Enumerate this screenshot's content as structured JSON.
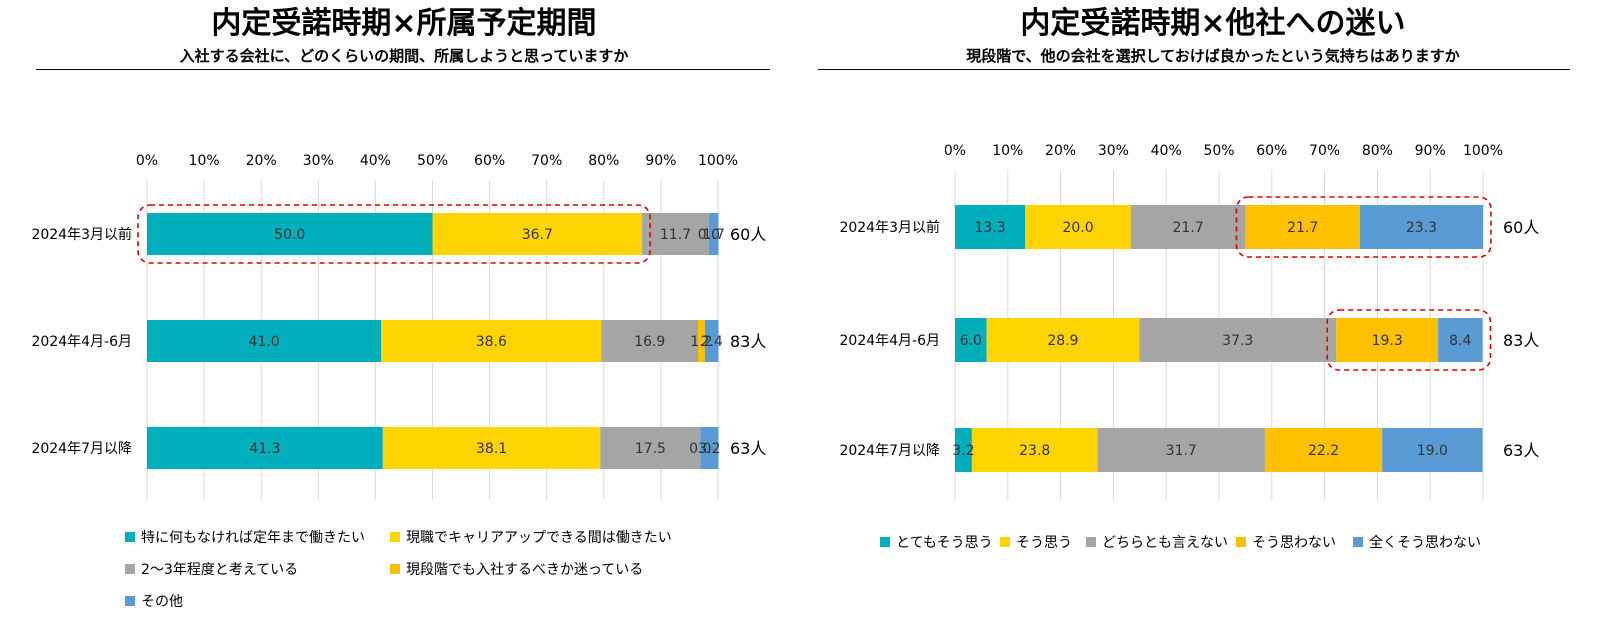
{
  "chart_data": [
    {
      "type": "bar",
      "orientation": "horizontal",
      "stacked": true,
      "title": "内定受諾時期×所属予定期間",
      "subtitle": "入社する会社に、どのくらいの期間、所属しようと思っていますか",
      "x_ticks": [
        "0%",
        "10%",
        "20%",
        "30%",
        "40%",
        "50%",
        "60%",
        "70%",
        "80%",
        "90%",
        "100%"
      ],
      "xlim": [
        0,
        100
      ],
      "categories": [
        "2024年3月以前",
        "2024年4月-6月",
        "2024年7月以降"
      ],
      "n_labels": [
        "60人",
        "83人",
        "63人"
      ],
      "series": [
        {
          "name": "特に何もなければ定年まで働きたい",
          "color": "#00AEBC",
          "values": [
            50.0,
            41.0,
            41.3
          ],
          "labels": [
            "50.0",
            "41.0",
            "41.3"
          ]
        },
        {
          "name": "現職でキャリアアップできる間は働きたい",
          "color": "#FFD400",
          "values": [
            36.7,
            38.6,
            38.1
          ],
          "labels": [
            "36.7",
            "38.6",
            "38.1"
          ]
        },
        {
          "name": "2～3年程度と考えている",
          "color": "#A5A5A5",
          "values": [
            11.7,
            16.9,
            17.5
          ],
          "labels": [
            "11.7",
            "16.9",
            "17.5"
          ]
        },
        {
          "name": "現段階でも入社するべきか迷っている",
          "color": "#FFC000",
          "values": [
            0.0,
            1.2,
            0.0
          ],
          "labels": [
            "0.0",
            "1.2",
            "0.0"
          ]
        },
        {
          "name": "その他",
          "color": "#5B9BD5",
          "values": [
            1.7,
            2.4,
            3.2
          ],
          "labels": [
            "1.7",
            "2.4",
            "3.2"
          ]
        }
      ],
      "highlights": [
        {
          "row": 0,
          "from_series": 0,
          "to_series": 1
        }
      ]
    },
    {
      "type": "bar",
      "orientation": "horizontal",
      "stacked": true,
      "title": "内定受諾時期×他社への迷い",
      "subtitle": "現段階で、他の会社を選択しておけば良かったという気持ちはありますか",
      "x_ticks": [
        "0%",
        "10%",
        "20%",
        "30%",
        "40%",
        "50%",
        "60%",
        "70%",
        "80%",
        "90%",
        "100%"
      ],
      "xlim": [
        0,
        100
      ],
      "categories": [
        "2024年3月以前",
        "2024年4月-6月",
        "2024年7月以降"
      ],
      "n_labels": [
        "60人",
        "83人",
        "63人"
      ],
      "series": [
        {
          "name": "とてもそう思う",
          "color": "#00AEBC",
          "values": [
            13.3,
            6.0,
            3.2
          ],
          "labels": [
            "13.3",
            "6.0",
            "3.2"
          ]
        },
        {
          "name": "そう思う",
          "color": "#FFD400",
          "values": [
            20.0,
            28.9,
            23.8
          ],
          "labels": [
            "20.0",
            "28.9",
            "23.8"
          ]
        },
        {
          "name": "どちらとも言えない",
          "color": "#A5A5A5",
          "values": [
            21.7,
            37.3,
            31.7
          ],
          "labels": [
            "21.7",
            "37.3",
            "31.7"
          ]
        },
        {
          "name": "そう思わない",
          "color": "#FFC000",
          "values": [
            21.7,
            19.3,
            22.2
          ],
          "labels": [
            "21.7",
            "19.3",
            "22.2"
          ]
        },
        {
          "name": "全くそう思わない",
          "color": "#5B9BD5",
          "values": [
            23.3,
            8.4,
            19.0
          ],
          "labels": [
            "23.3",
            "8.4",
            "19.0"
          ]
        }
      ],
      "highlights": [
        {
          "row": 0,
          "from_series": 3,
          "to_series": 4
        },
        {
          "row": 1,
          "from_series": 3,
          "to_series": 4
        }
      ]
    }
  ]
}
